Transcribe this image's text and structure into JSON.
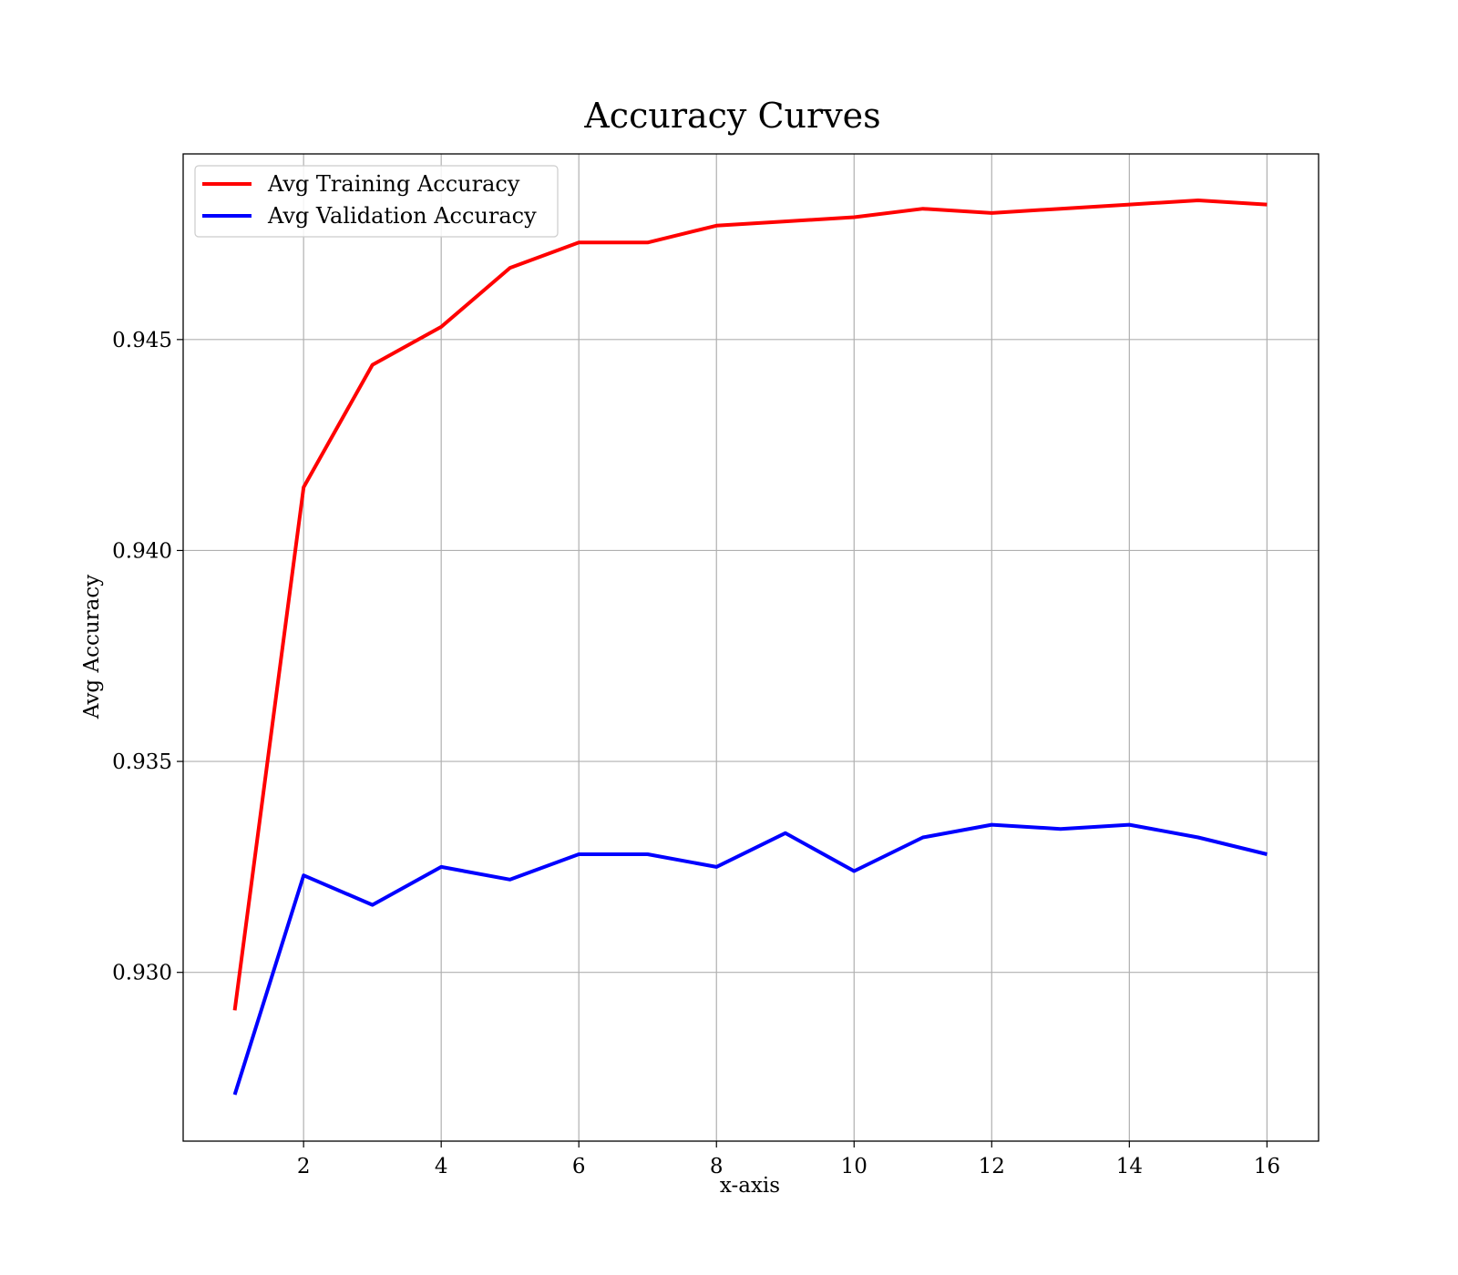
{
  "chart_data": {
    "type": "line",
    "title": "Accuracy Curves",
    "xlabel": "x-axis",
    "ylabel": "Avg Accuracy",
    "x": [
      1,
      2,
      3,
      4,
      5,
      6,
      7,
      8,
      9,
      10,
      11,
      12,
      13,
      14,
      15,
      16
    ],
    "xlim": [
      0.25,
      16.75
    ],
    "ylim": [
      0.926,
      0.9494
    ],
    "x_ticks": [
      2,
      4,
      6,
      8,
      10,
      12,
      14,
      16
    ],
    "x_tick_labels": [
      "2",
      "4",
      "6",
      "8",
      "10",
      "12",
      "14",
      "16"
    ],
    "y_ticks": [
      0.93,
      0.935,
      0.94,
      0.945
    ],
    "y_tick_labels": [
      "0.930",
      "0.935",
      "0.940",
      "0.945"
    ],
    "grid": true,
    "legend_position": "upper left",
    "series": [
      {
        "name": "Avg Training Accuracy",
        "color": "#ff0000",
        "values": [
          0.9291,
          0.9415,
          0.9444,
          0.9453,
          0.9467,
          0.9473,
          0.9473,
          0.9477,
          0.9478,
          0.9479,
          0.9481,
          0.948,
          0.9481,
          0.9482,
          0.9483,
          0.9482
        ]
      },
      {
        "name": "Avg Validation Accuracy",
        "color": "#0000ff",
        "values": [
          0.9271,
          0.9323,
          0.9316,
          0.9325,
          0.9322,
          0.9328,
          0.9328,
          0.9325,
          0.9333,
          0.9324,
          0.9332,
          0.9335,
          0.9334,
          0.9335,
          0.9332,
          0.9328
        ]
      }
    ]
  }
}
